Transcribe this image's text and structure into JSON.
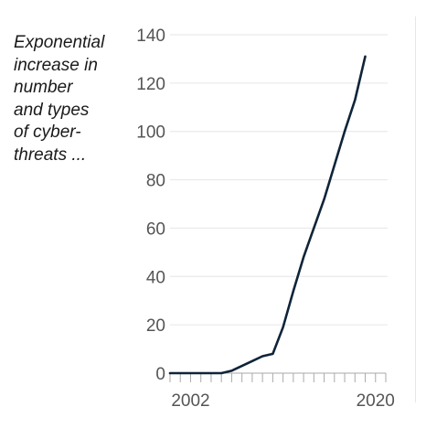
{
  "annotation": {
    "lines": [
      "Exponential",
      "increase in",
      "number",
      "and types",
      "of cyber-",
      "threats ..."
    ]
  },
  "colors": {
    "line": "#0f2439",
    "grid": "#e6e6e6",
    "axis": "#aaaaaa",
    "text": "#555555"
  },
  "chart_data": {
    "type": "line",
    "title": "",
    "xlabel": "",
    "ylabel": "",
    "xlim": [
      2000,
      2021
    ],
    "ylim": [
      0,
      140
    ],
    "grid": true,
    "y_ticks": [
      0,
      20,
      40,
      60,
      80,
      100,
      120,
      140
    ],
    "y_tick_labels": [
      "0",
      "20",
      "40",
      "60",
      "80",
      "100",
      "120",
      "140"
    ],
    "x_tick_labels": [
      {
        "x": 2002,
        "label": "2002"
      },
      {
        "x": 2020,
        "label": "2020"
      }
    ],
    "x_minor_ticks": [
      2000,
      2001,
      2002,
      2003,
      2004,
      2005,
      2006,
      2007,
      2008,
      2009,
      2010,
      2011,
      2012,
      2013,
      2014,
      2015,
      2016,
      2017,
      2018,
      2019,
      2020,
      2021
    ],
    "series": [
      {
        "x": [
          2000,
          2001,
          2002,
          2003,
          2004,
          2005,
          2006,
          2007,
          2008,
          2009,
          2010,
          2011,
          2012,
          2013,
          2014,
          2015,
          2016,
          2017,
          2018,
          2019,
          2020,
          2021
        ],
        "values": [
          0,
          0,
          0,
          0,
          0,
          0,
          1,
          3,
          5,
          7,
          8,
          19,
          34,
          48,
          60,
          72,
          86,
          100,
          113,
          131,
          null,
          null
        ]
      }
    ]
  }
}
